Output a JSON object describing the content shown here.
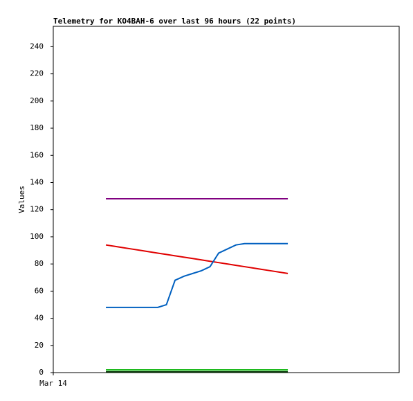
{
  "chart_data": {
    "type": "line",
    "title": "Telemetry for KO4BAH-6 over last 96 hours (22 points)",
    "y_label": "Values",
    "xlim": [
      0,
      96
    ],
    "xticks": [
      {
        "value": 0,
        "label": "Mar 14"
      }
    ],
    "ylim": [
      0,
      255
    ],
    "yticks": [
      0,
      20,
      40,
      60,
      80,
      100,
      120,
      140,
      160,
      180,
      200,
      220,
      240
    ],
    "x": [
      14.6,
      17.0,
      19.4,
      21.8,
      24.2,
      26.6,
      29.0,
      31.4,
      33.8,
      36.3,
      38.7,
      41.1,
      43.5,
      45.9,
      48.3,
      50.7,
      53.1,
      55.5,
      57.9,
      60.3,
      62.7,
      65.1
    ],
    "series": [
      {
        "color": "#800080",
        "values": [
          128,
          128,
          128,
          128,
          128,
          128,
          128,
          128,
          128,
          128,
          128,
          128,
          128,
          128,
          128,
          128,
          128,
          128,
          128,
          128,
          128,
          128
        ]
      },
      {
        "color": "#e00000",
        "values": [
          94,
          93,
          92,
          91,
          90,
          89,
          88,
          87,
          86,
          85,
          84,
          83,
          82,
          81,
          80,
          79,
          78,
          77,
          76,
          75,
          74,
          73
        ]
      },
      {
        "color": "#0060c0",
        "values": [
          48,
          48,
          48,
          48,
          48,
          48,
          48,
          50,
          68,
          71,
          73,
          75,
          78,
          88,
          91,
          94,
          95,
          95,
          95,
          95,
          95,
          95
        ]
      },
      {
        "color": "#00b000",
        "values": [
          2,
          2,
          2,
          2,
          2,
          2,
          2,
          2,
          2,
          2,
          2,
          2,
          2,
          2,
          2,
          2,
          2,
          2,
          2,
          2,
          2,
          2
        ]
      },
      {
        "color": "#003000",
        "values": [
          0.5,
          0.5,
          0.5,
          0.5,
          0.5,
          0.5,
          0.5,
          0.5,
          0.5,
          0.5,
          0.5,
          0.5,
          0.5,
          0.5,
          0.5,
          0.5,
          0.5,
          0.5,
          0.5,
          0.5,
          0.5,
          0.5
        ]
      }
    ]
  }
}
